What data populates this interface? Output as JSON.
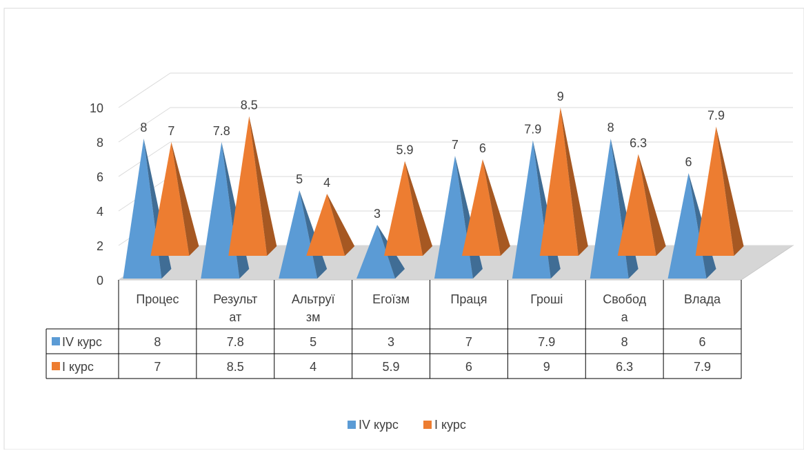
{
  "chart_data": {
    "type": "bar",
    "style": "3d-pyramid",
    "categories": [
      "Процес",
      "Результат",
      "Альтруїзм",
      "Егоїзм",
      "Праця",
      "Гроші",
      "Свобода",
      "Влада"
    ],
    "category_lines": [
      [
        "Процес"
      ],
      [
        "Результ",
        "ат"
      ],
      [
        "Альтруї",
        "зм"
      ],
      [
        "Егоїзм"
      ],
      [
        "Праця"
      ],
      [
        "Гроші"
      ],
      [
        "Свобод",
        "а"
      ],
      [
        "Влада"
      ]
    ],
    "series": [
      {
        "name": "IV курс",
        "values": [
          8,
          7.8,
          5,
          3,
          7,
          7.9,
          8,
          6
        ],
        "value_labels": [
          "8",
          "7.8",
          "5",
          "3",
          "7",
          "7.9",
          "8",
          "6"
        ],
        "color": "#5B9BD5"
      },
      {
        "name": "I курс",
        "values": [
          7,
          8.5,
          4,
          5.9,
          6,
          9,
          6.3,
          7.9
        ],
        "value_labels": [
          "7",
          "8.5",
          "4",
          "5.9",
          "6",
          "9",
          "6.3",
          "7.9"
        ],
        "color": "#ED7D31"
      }
    ],
    "y_ticks": [
      "0",
      "2",
      "4",
      "6",
      "8",
      "10"
    ],
    "ylim": [
      0,
      10
    ],
    "grid": true,
    "data_table": true,
    "legend": "bottom"
  }
}
